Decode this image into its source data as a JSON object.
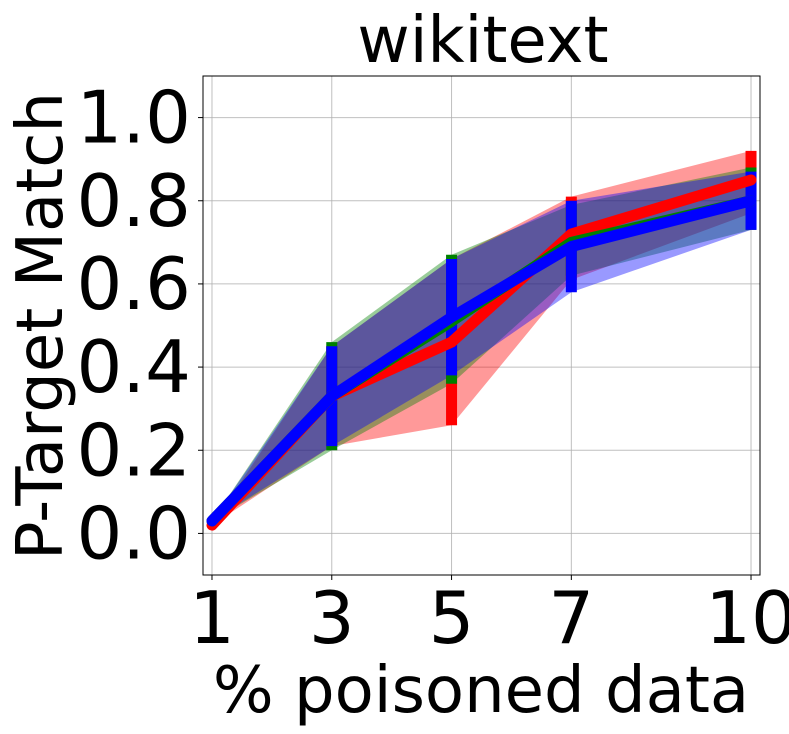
{
  "chart_data": {
    "type": "line",
    "title": "wikitext",
    "xlabel": "% poisoned data",
    "ylabel": "P-Target Match",
    "x": [
      1,
      3,
      5,
      7,
      10
    ],
    "x_tick_labels": [
      "1",
      "3",
      "5",
      "7",
      "10"
    ],
    "xlim": [
      0.85,
      10.15
    ],
    "ylim": [
      -0.1,
      1.1
    ],
    "y_ticks": [
      0.0,
      0.2,
      0.4,
      0.6,
      0.8,
      1.0
    ],
    "y_tick_labels": [
      "0.0",
      "0.2",
      "0.4",
      "0.6",
      "0.8",
      "1.0"
    ],
    "grid": true,
    "series": [
      {
        "color": "#ff0000",
        "values": [
          0.02,
          0.33,
          0.46,
          0.72,
          0.85
        ],
        "lower": [
          0.02,
          0.21,
          0.26,
          0.61,
          0.77
        ],
        "upper": [
          0.02,
          0.45,
          0.66,
          0.81,
          0.92
        ]
      },
      {
        "color": "#008000",
        "values": [
          0.03,
          0.33,
          0.51,
          0.7,
          0.8
        ],
        "lower": [
          0.03,
          0.2,
          0.36,
          0.62,
          0.73
        ],
        "upper": [
          0.03,
          0.46,
          0.67,
          0.79,
          0.88
        ]
      },
      {
        "color": "#0000ff",
        "values": [
          0.03,
          0.33,
          0.52,
          0.69,
          0.8
        ],
        "lower": [
          0.03,
          0.21,
          0.38,
          0.58,
          0.73
        ],
        "upper": [
          0.03,
          0.45,
          0.66,
          0.8,
          0.87
        ]
      }
    ]
  }
}
